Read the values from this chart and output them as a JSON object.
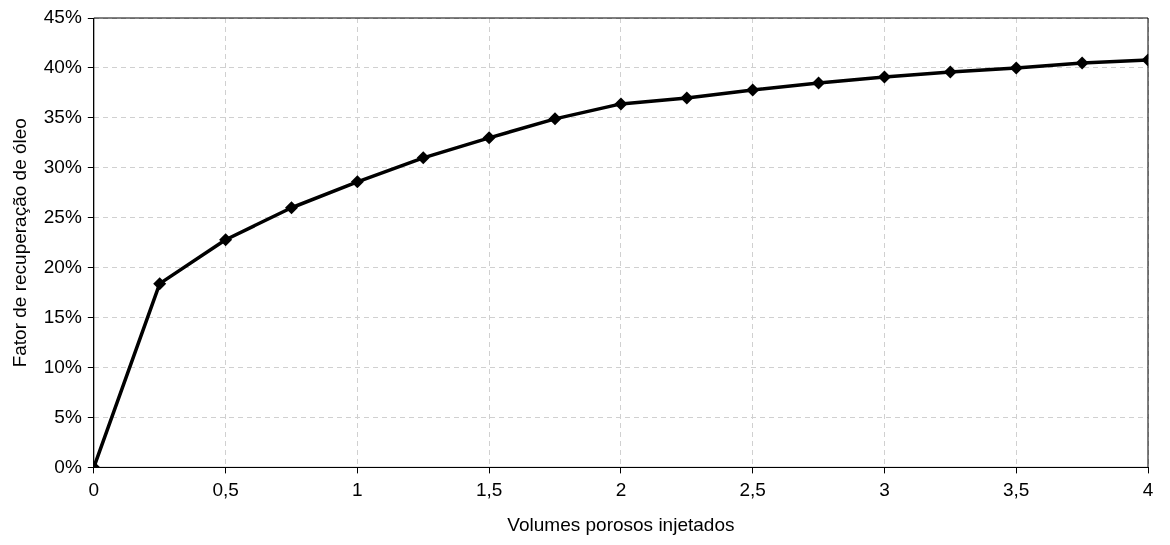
{
  "chart_data": {
    "type": "line",
    "xlabel": "Volumes porosos injetados",
    "ylabel": "Fator de recuperação de óleo",
    "x": [
      0,
      0.25,
      0.5,
      0.75,
      1,
      1.25,
      1.5,
      1.75,
      2,
      2.25,
      2.5,
      2.75,
      3,
      3.25,
      3.5,
      3.75,
      4
    ],
    "series": [
      {
        "color": "#000000",
        "values": [
          0,
          18.4,
          22.8,
          26.0,
          28.6,
          31.0,
          33.0,
          34.9,
          36.4,
          37.0,
          37.8,
          38.5,
          39.1,
          39.6,
          40.0,
          40.5,
          40.8
        ]
      }
    ],
    "xlim": [
      0,
      4
    ],
    "xticks": [
      0,
      {
        "value": 0.5,
        "label": "0,5"
      },
      1,
      {
        "value": 1.5,
        "label": "1,5"
      },
      2,
      {
        "value": 2.5,
        "label": "2,5"
      },
      3,
      {
        "value": 3.5,
        "label": "3,5"
      },
      4
    ],
    "ylim": [
      0,
      45
    ],
    "yticks": [
      {
        "value": 0,
        "label": "0%"
      },
      {
        "value": 5,
        "label": "5%"
      },
      {
        "value": 10,
        "label": "10%"
      },
      {
        "value": 15,
        "label": "15%"
      },
      {
        "value": 20,
        "label": "20%"
      },
      {
        "value": 25,
        "label": "25%"
      },
      {
        "value": 30,
        "label": "30%"
      },
      {
        "value": 35,
        "label": "35%"
      },
      {
        "value": 40,
        "label": "40%"
      },
      {
        "value": 45,
        "label": "45%"
      }
    ],
    "grid": true,
    "legend": false,
    "marker": "diamond",
    "line_style": "solid"
  }
}
